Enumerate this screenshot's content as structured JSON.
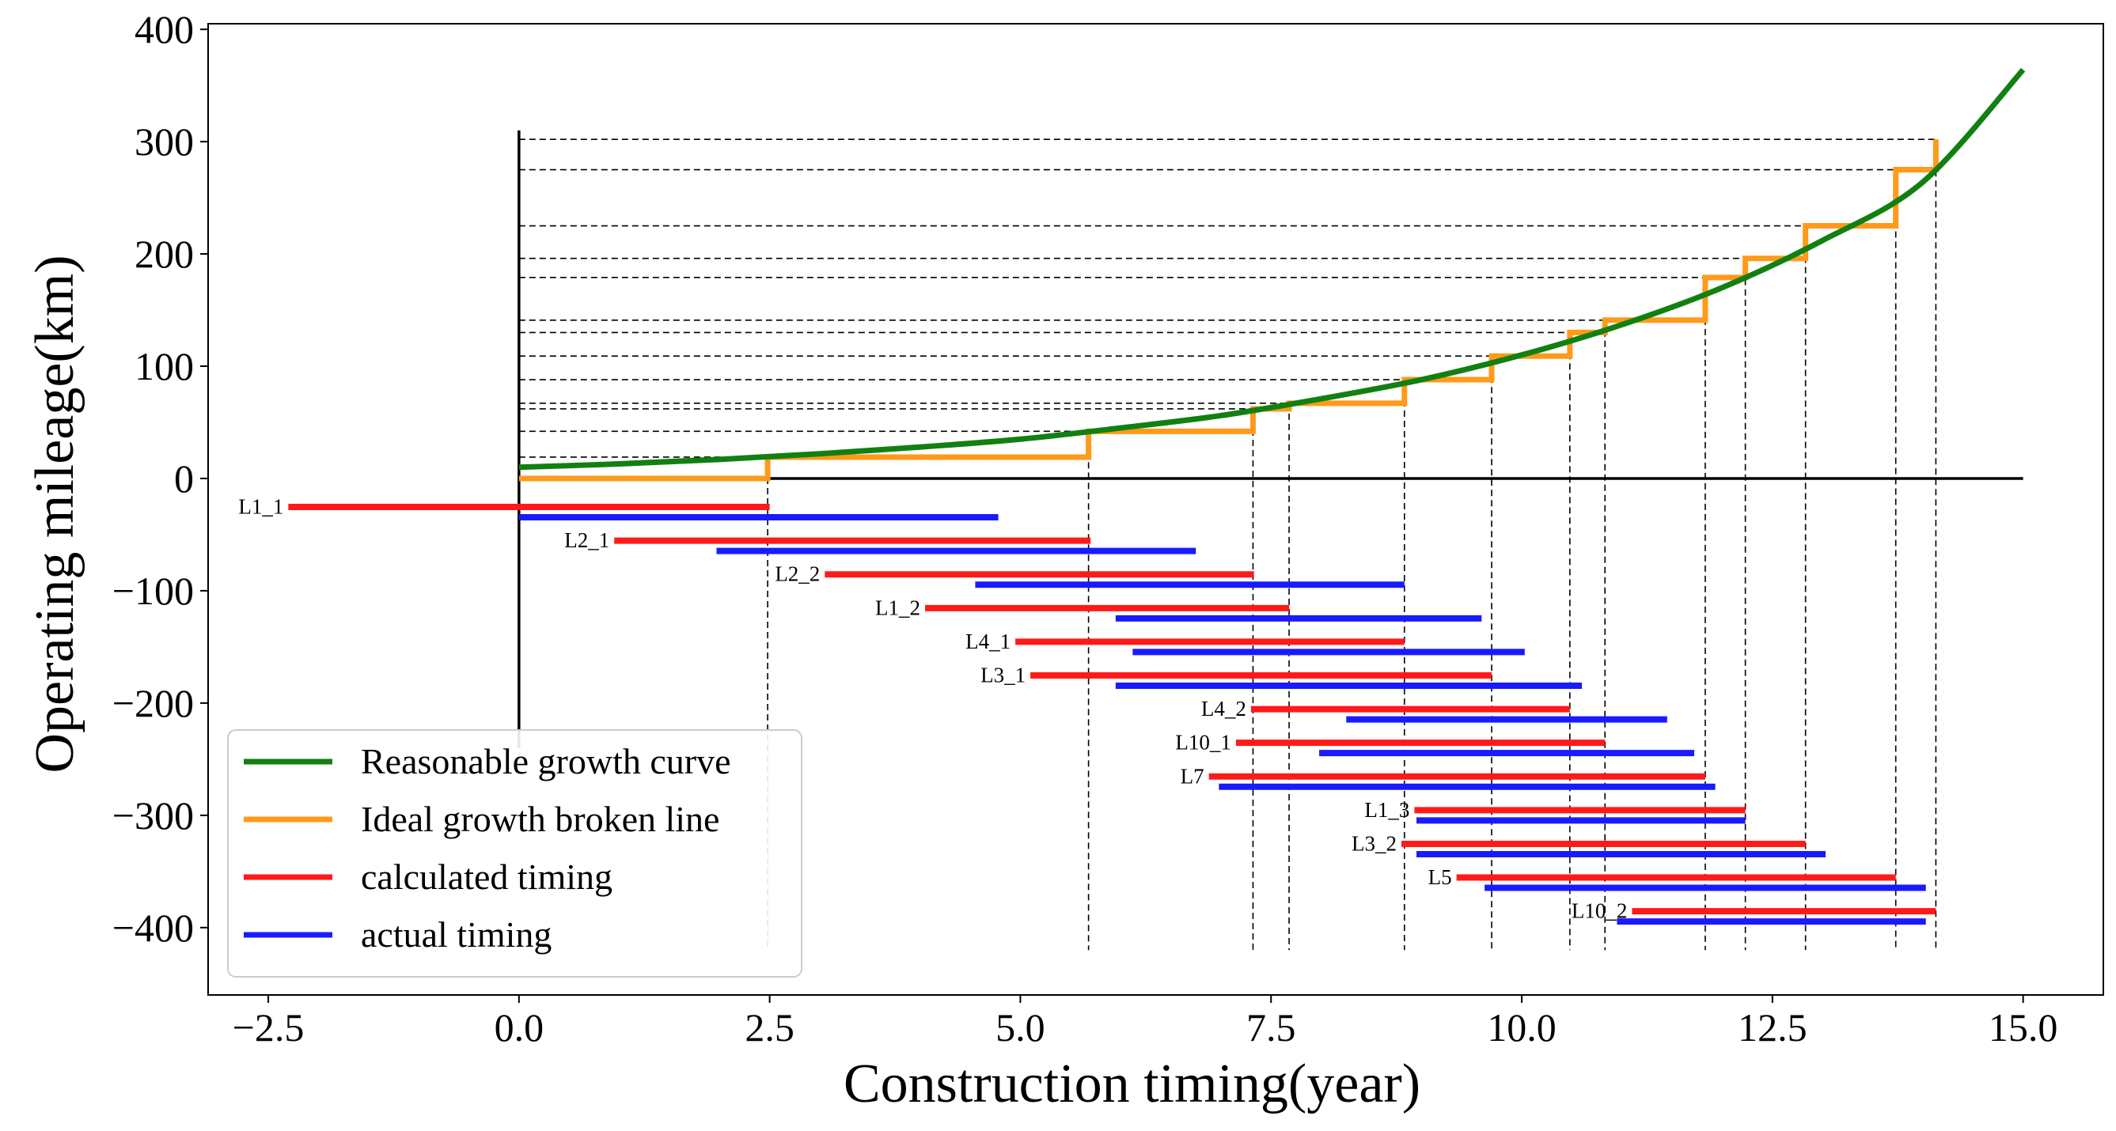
{
  "chart_data": {
    "type": "line",
    "title": "",
    "xlabel": "Construction timing(year)",
    "ylabel": "Operating mileage(km)",
    "xlim": [
      -3.1,
      15.8
    ],
    "ylim": [
      -460,
      405
    ],
    "xticks": [
      -2.5,
      0.0,
      2.5,
      5.0,
      7.5,
      10.0,
      12.5,
      15.0
    ],
    "xtick_labels": [
      "−2.5",
      "0.0",
      "2.5",
      "5.0",
      "7.5",
      "10.0",
      "12.5",
      "15.0"
    ],
    "yticks": [
      400,
      300,
      200,
      100,
      0,
      -100,
      -200,
      -300,
      -400
    ],
    "ytick_labels": [
      "400",
      "300",
      "200",
      "100",
      "0",
      "−100",
      "−200",
      "−300",
      "−400"
    ],
    "grid": false,
    "legend_position": "lower-left",
    "colors": {
      "growth_curve": "#118011",
      "broken_line": "#ff9a1a",
      "calculated": "#ff1a1a",
      "actual": "#1a1aff"
    },
    "legend": [
      {
        "key": "growth_curve",
        "label": "Reasonable growth curve"
      },
      {
        "key": "broken_line",
        "label": "Ideal growth broken line"
      },
      {
        "key": "calculated",
        "label": "calculated timing"
      },
      {
        "key": "actual",
        "label": "actual timing"
      }
    ],
    "growth_curve": {
      "x": [
        0,
        1,
        2,
        3,
        4,
        5,
        6,
        7,
        8,
        9,
        10,
        11,
        12,
        13,
        14,
        15
      ],
      "y": [
        10,
        13,
        17,
        22,
        28,
        35,
        45,
        56,
        71,
        88,
        110,
        137,
        170,
        212,
        264,
        364
      ]
    },
    "broken_line": {
      "steps": [
        {
          "x": 0.0,
          "y": 0
        },
        {
          "x": 2.48,
          "y": 19
        },
        {
          "x": 5.68,
          "y": 42
        },
        {
          "x": 7.32,
          "y": 62
        },
        {
          "x": 7.68,
          "y": 67
        },
        {
          "x": 8.83,
          "y": 88
        },
        {
          "x": 9.7,
          "y": 109
        },
        {
          "x": 10.48,
          "y": 130
        },
        {
          "x": 10.83,
          "y": 141
        },
        {
          "x": 11.83,
          "y": 179
        },
        {
          "x": 12.23,
          "y": 196
        },
        {
          "x": 12.83,
          "y": 225
        },
        {
          "x": 13.73,
          "y": 275
        },
        {
          "x": 14.13,
          "y": 302
        }
      ]
    },
    "reference_levels": [
      19,
      42,
      62,
      67,
      88,
      109,
      130,
      141,
      179,
      196,
      225,
      275,
      302
    ],
    "reference_times": [
      2.48,
      5.68,
      7.32,
      7.68,
      8.83,
      9.7,
      10.48,
      10.83,
      11.83,
      12.23,
      12.83,
      13.73,
      14.13
    ],
    "reference_time_bottom": -420,
    "origin_axis": {
      "x_min": 0.0,
      "y_max": 310,
      "y_min": -240,
      "x_max": 15.0
    },
    "lines": [
      {
        "label": "L1_1",
        "y": -30,
        "calculated": [
          -2.3,
          2.5
        ],
        "actual": [
          0.0,
          4.78
        ]
      },
      {
        "label": "L2_1",
        "y": -60,
        "calculated": [
          0.95,
          5.7
        ],
        "actual": [
          1.97,
          6.75
        ]
      },
      {
        "label": "L2_2",
        "y": -90,
        "calculated": [
          3.05,
          7.33
        ],
        "actual": [
          4.55,
          8.83
        ]
      },
      {
        "label": "L1_2",
        "y": -120,
        "calculated": [
          4.05,
          7.68
        ],
        "actual": [
          5.95,
          9.6
        ]
      },
      {
        "label": "L4_1",
        "y": -150,
        "calculated": [
          4.95,
          8.83
        ],
        "actual": [
          6.12,
          10.03
        ]
      },
      {
        "label": "L3_1",
        "y": -180,
        "calculated": [
          5.1,
          9.7
        ],
        "actual": [
          5.95,
          10.6
        ]
      },
      {
        "label": "L4_2",
        "y": -210,
        "calculated": [
          7.3,
          10.48
        ],
        "actual": [
          8.25,
          11.45
        ]
      },
      {
        "label": "L10_1",
        "y": -240,
        "calculated": [
          7.15,
          10.83
        ],
        "actual": [
          7.98,
          11.72
        ]
      },
      {
        "label": "L7",
        "y": -270,
        "calculated": [
          6.88,
          11.83
        ],
        "actual": [
          6.98,
          11.93
        ]
      },
      {
        "label": "L1_3",
        "y": -300,
        "calculated": [
          8.93,
          12.23
        ],
        "actual": [
          8.95,
          12.23
        ]
      },
      {
        "label": "L3_2",
        "y": -330,
        "calculated": [
          8.8,
          12.83
        ],
        "actual": [
          8.95,
          13.03
        ]
      },
      {
        "label": "L5",
        "y": -360,
        "calculated": [
          9.35,
          13.73
        ],
        "actual": [
          9.63,
          14.03
        ]
      },
      {
        "label": "L10_2",
        "y": -390,
        "calculated": [
          11.1,
          14.13
        ],
        "actual": [
          10.95,
          14.03
        ]
      }
    ]
  }
}
